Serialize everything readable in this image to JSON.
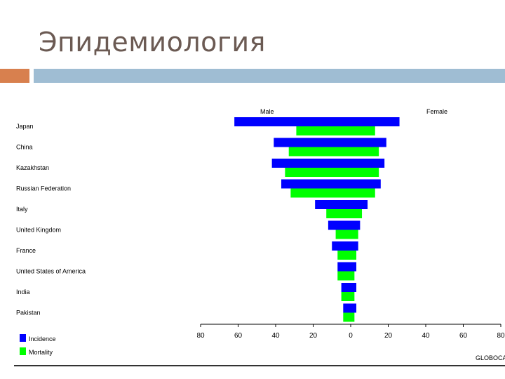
{
  "header": {
    "title": "Эпидемиология"
  },
  "colors": {
    "incidence": "#0000ff",
    "mortality": "#00ff00",
    "title": "#6b5a53",
    "accent_orange": "#d8804e",
    "accent_blue": "#9fbdd3"
  },
  "chart_data": {
    "type": "bar",
    "orientation": "horizontal-population-pyramid",
    "side_labels": {
      "left": "Male",
      "right": "Female"
    },
    "categories": [
      "Japan",
      "China",
      "Kazakhstan",
      "Russian Federation",
      "Italy",
      "United Kingdom",
      "France",
      "United States of America",
      "India",
      "Pakistan"
    ],
    "series": [
      {
        "name": "Incidence",
        "male": [
          62,
          41,
          42,
          37,
          19,
          12,
          10,
          7,
          5,
          4
        ],
        "female": [
          26,
          19,
          18,
          16,
          9,
          5,
          4,
          3,
          3,
          3
        ]
      },
      {
        "name": "Mortality",
        "male": [
          29,
          33,
          35,
          32,
          13,
          8,
          7,
          7,
          5,
          4
        ],
        "female": [
          13,
          15,
          15,
          13,
          6,
          4,
          3,
          2,
          2,
          2
        ]
      }
    ],
    "xticks": [
      "80",
      "60",
      "40",
      "20",
      "0",
      "20",
      "40",
      "60",
      "80"
    ],
    "xlim": [
      -80,
      80
    ],
    "grid": false,
    "legend": {
      "placement": "bottom-left",
      "items": [
        "Incidence",
        "Mortality"
      ]
    },
    "source": "GLOBOCAN"
  }
}
